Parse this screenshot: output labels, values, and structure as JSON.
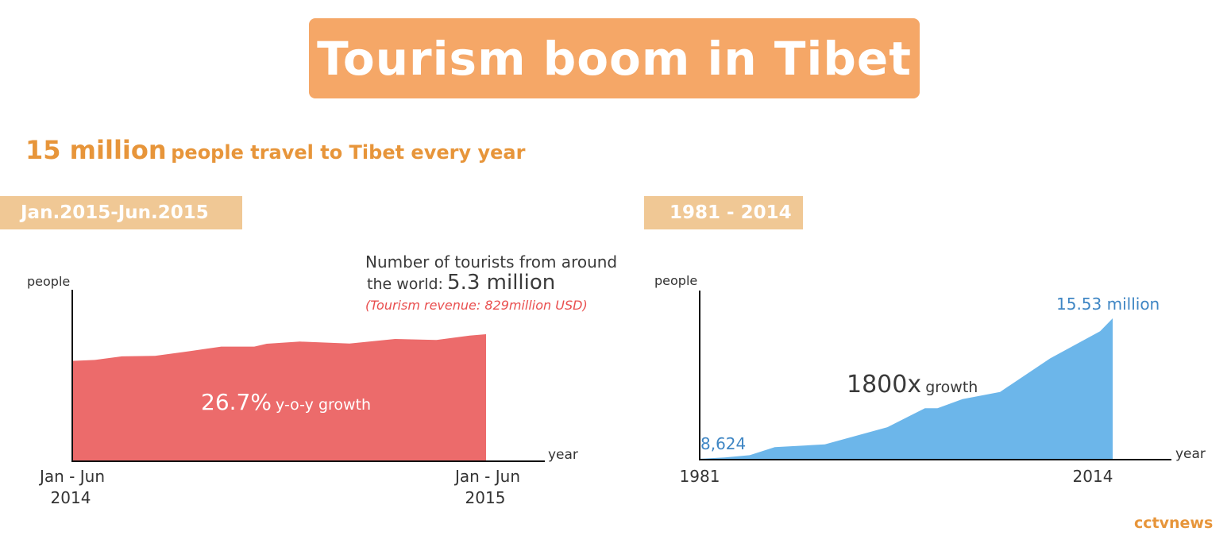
{
  "title": "Tourism boom in Tibet",
  "headline": {
    "big": "15 million",
    "small": "people travel to Tibet every year"
  },
  "brand": "cctvnews",
  "colors": {
    "title_bg": "#f5a767",
    "accent": "#e7953a",
    "period_bg": "#f0c895",
    "left_area": "#ec6b6b",
    "right_area": "#6cb6ea",
    "value_blue": "#3f86c4",
    "revenue_red": "#e94f4f"
  },
  "chart_data": [
    {
      "type": "area",
      "period_label": "Jan.2015-Jun.2015",
      "ylabel": "people",
      "xlabel": "year",
      "x_tick_labels": [
        [
          "Jan - Jun",
          "2014"
        ],
        [
          "Jan - Jun",
          "2015"
        ]
      ],
      "x": [
        0,
        0.055,
        0.12,
        0.2,
        0.28,
        0.36,
        0.44,
        0.47,
        0.55,
        0.67,
        0.78,
        0.88,
        0.96,
        1.0
      ],
      "values": [
        4.18,
        4.22,
        4.37,
        4.39,
        4.58,
        4.78,
        4.78,
        4.9,
        4.99,
        4.91,
        5.1,
        5.06,
        5.24,
        5.3
      ],
      "ylim": [
        0,
        6
      ],
      "annotations": {
        "total_line1": "Number of tourists from around",
        "total_line2_prefix": "the world:",
        "total_value": "5.3 million",
        "revenue": "(Tourism revenue:  829million USD)",
        "growth_value": "26.7%",
        "growth_label": "y-o-y growth"
      }
    },
    {
      "type": "area",
      "period_label": "1981 - 2014",
      "ylabel": "people",
      "xlabel": "year",
      "x_tick_labels": [
        "1981",
        "2014"
      ],
      "x": [
        1981,
        1983,
        1985,
        1987,
        1991,
        1996,
        1999,
        2000,
        2002,
        2005,
        2009,
        2013,
        2014
      ],
      "values": [
        0.008624,
        0.15,
        0.4,
        1.3,
        1.6,
        3.5,
        5.6,
        5.6,
        6.6,
        7.4,
        11.1,
        14.1,
        15.53
      ],
      "ylim": [
        0,
        15.53
      ],
      "annotations": {
        "start_value": "8,624",
        "end_value": "15.53 million",
        "growth_value": "1800x",
        "growth_label": "growth"
      }
    }
  ]
}
